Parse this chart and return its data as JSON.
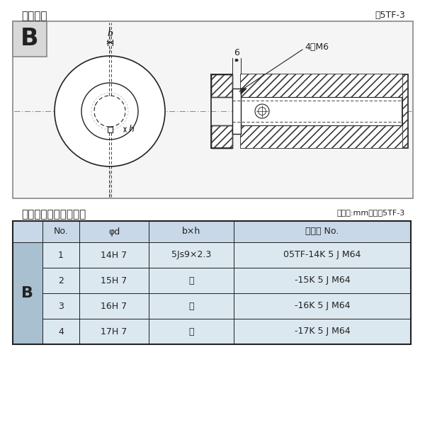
{
  "title_left": "軸穴形状",
  "title_right": "図5TF-3",
  "bg_color": "#ffffff",
  "table_title_left": "軸穴形状コードー覧表",
  "table_title_right": "（単位:mm）　表5TF-3",
  "table_header": [
    "No.",
    "φd",
    "b×h",
    "コード No."
  ],
  "table_rows": [
    [
      "1",
      "14H 7",
      "5Js9×2.3",
      "05TF-14K 5 J M64"
    ],
    [
      "2",
      "15H 7",
      "〃",
      "-15K 5 J M64"
    ],
    [
      "3",
      "16H 7",
      "〃",
      "-16K 5 J M64"
    ],
    [
      "4",
      "17H 7",
      "〃",
      "-17K 5 J M64"
    ]
  ],
  "row_label": "B",
  "header_bg": "#c8d8e8",
  "row_bg": "#dce8f0",
  "label_col_bg": "#a8c0d0",
  "line_color": "#222222",
  "gray_line": "#888888",
  "hatch_color": "#444444",
  "diagram_bg": "#ffffff",
  "b_box_bg": "#d8d8d8"
}
